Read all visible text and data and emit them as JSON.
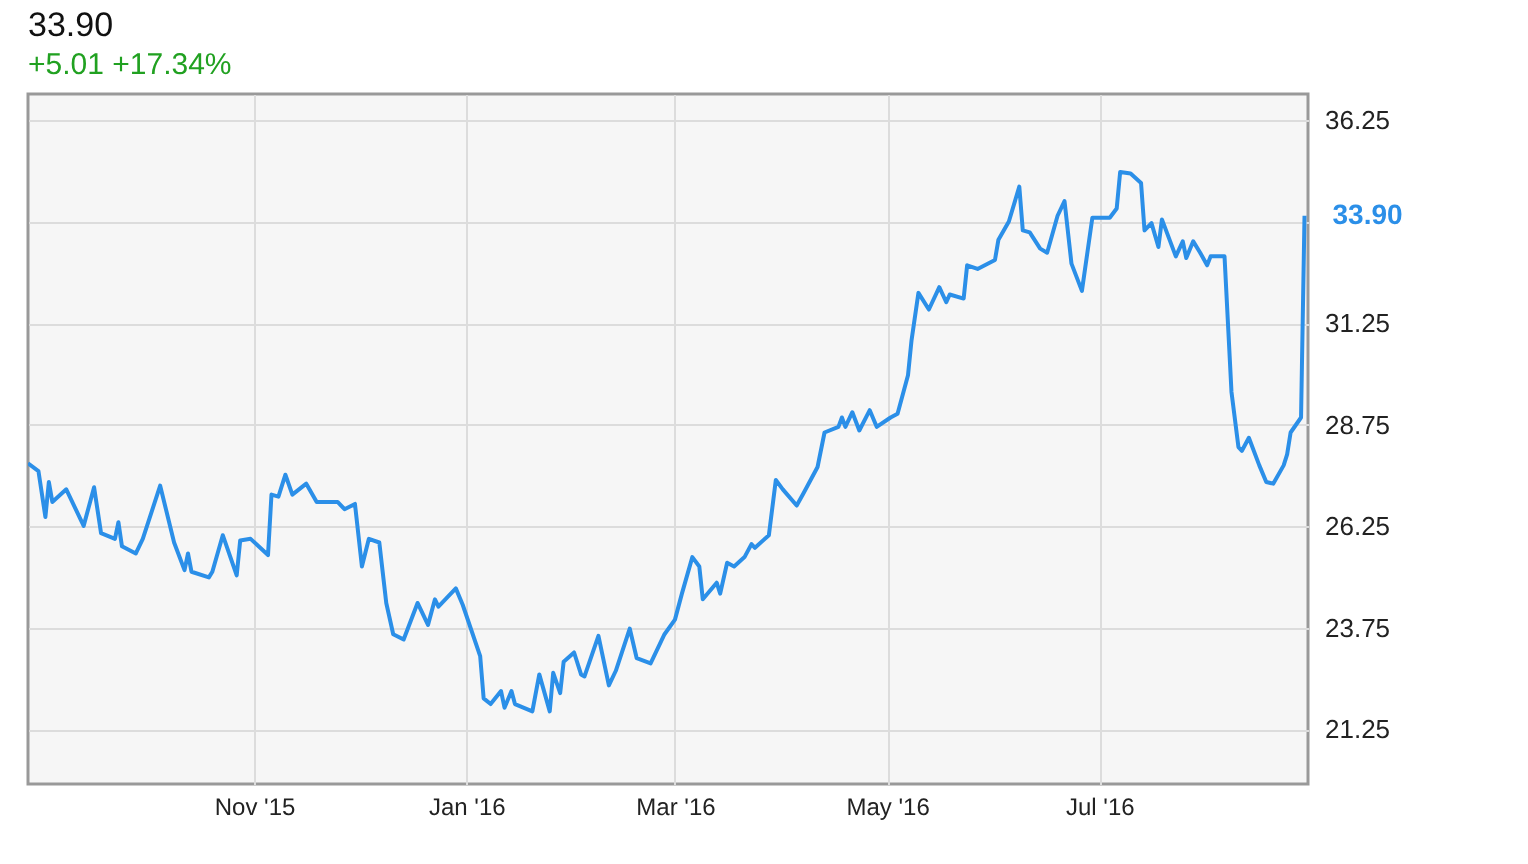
{
  "chart_data": {
    "type": "line",
    "title": "33.90",
    "subtitle": "+5.01  +17.34%",
    "x": [
      "2015-08-28",
      "2015-08-31",
      "2015-09-02",
      "2015-09-03",
      "2015-09-04",
      "2015-09-08",
      "2015-09-13",
      "2015-09-16",
      "2015-09-18",
      "2015-09-22",
      "2015-09-23",
      "2015-09-24",
      "2015-09-28",
      "2015-09-30",
      "2015-10-05",
      "2015-10-09",
      "2015-10-12",
      "2015-10-13",
      "2015-10-14",
      "2015-10-19",
      "2015-10-20",
      "2015-10-23",
      "2015-10-27",
      "2015-10-28",
      "2015-10-31",
      "2015-11-05",
      "2015-11-06",
      "2015-11-08",
      "2015-11-10",
      "2015-11-12",
      "2015-11-16",
      "2015-11-19",
      "2015-11-25",
      "2015-11-27",
      "2015-11-30",
      "2015-12-02",
      "2015-12-04",
      "2015-12-07",
      "2015-12-09",
      "2015-12-11",
      "2015-12-14",
      "2015-12-18",
      "2015-12-21",
      "2015-12-23",
      "2015-12-24",
      "2015-12-29",
      "2015-12-31",
      "2016-01-05",
      "2016-01-06",
      "2016-01-08",
      "2016-01-11",
      "2016-01-12",
      "2016-01-14",
      "2016-01-15",
      "2016-01-20",
      "2016-01-22",
      "2016-01-25",
      "2016-01-26",
      "2016-01-28",
      "2016-01-29",
      "2016-02-01",
      "2016-02-03",
      "2016-02-04",
      "2016-02-08",
      "2016-02-11",
      "2016-02-13",
      "2016-02-17",
      "2016-02-19",
      "2016-02-23",
      "2016-02-27",
      "2016-03-01",
      "2016-03-03",
      "2016-03-06",
      "2016-03-08",
      "2016-03-09",
      "2016-03-13",
      "2016-03-14",
      "2016-03-16",
      "2016-03-18",
      "2016-03-21",
      "2016-03-23",
      "2016-03-24",
      "2016-03-28",
      "2016-03-30",
      "2016-04-01",
      "2016-04-05",
      "2016-04-07",
      "2016-04-11",
      "2016-04-13",
      "2016-04-17",
      "2016-04-18",
      "2016-04-19",
      "2016-04-21",
      "2016-04-23",
      "2016-04-26",
      "2016-04-28",
      "2016-05-02",
      "2016-05-04",
      "2016-05-07",
      "2016-05-08",
      "2016-05-10",
      "2016-05-13",
      "2016-05-16",
      "2016-05-18",
      "2016-05-19",
      "2016-05-23",
      "2016-05-24",
      "2016-05-27",
      "2016-06-01",
      "2016-06-02",
      "2016-06-05",
      "2016-06-08",
      "2016-06-09",
      "2016-06-11",
      "2016-06-14",
      "2016-06-16",
      "2016-06-19",
      "2016-06-21",
      "2016-06-23",
      "2016-06-26",
      "2016-06-29",
      "2016-07-04",
      "2016-07-06",
      "2016-07-07",
      "2016-07-10",
      "2016-07-13",
      "2016-07-14",
      "2016-07-16",
      "2016-07-18",
      "2016-07-19",
      "2016-07-23",
      "2016-07-25",
      "2016-07-26",
      "2016-07-28",
      "2016-07-30",
      "2016-08-01",
      "2016-08-02",
      "2016-08-06",
      "2016-08-08",
      "2016-08-10",
      "2016-08-11",
      "2016-08-13",
      "2016-08-16",
      "2016-08-18",
      "2016-08-20",
      "2016-08-23",
      "2016-08-24",
      "2016-08-25",
      "2016-08-28",
      "2016-08-29"
    ],
    "series": [
      {
        "color": "#2b8fe8",
        "values": [
          27.8,
          27.61,
          26.48,
          27.34,
          26.85,
          27.16,
          26.26,
          27.21,
          26.08,
          25.94,
          26.35,
          25.76,
          25.58,
          25.94,
          27.25,
          25.85,
          25.17,
          25.58,
          25.13,
          24.99,
          25.13,
          26.03,
          25.04,
          25.9,
          25.94,
          25.54,
          27.03,
          26.98,
          27.52,
          27.03,
          27.3,
          26.85,
          26.85,
          26.67,
          26.8,
          25.26,
          25.94,
          25.85,
          24.36,
          23.59,
          23.46,
          24.36,
          23.82,
          24.45,
          24.27,
          24.72,
          24.31,
          23.05,
          22.01,
          21.87,
          22.19,
          21.78,
          22.19,
          21.87,
          21.69,
          22.6,
          21.69,
          22.64,
          22.14,
          22.91,
          23.14,
          22.6,
          22.55,
          23.55,
          22.33,
          22.69,
          23.73,
          23.0,
          22.87,
          23.59,
          23.95,
          24.59,
          25.49,
          25.26,
          24.45,
          24.86,
          24.59,
          25.35,
          25.26,
          25.49,
          25.81,
          25.72,
          26.03,
          27.39,
          27.16,
          26.76,
          27.07,
          27.71,
          28.56,
          28.7,
          28.93,
          28.7,
          29.06,
          28.61,
          29.11,
          28.7,
          28.93,
          29.02,
          29.97,
          30.82,
          32.0,
          31.59,
          32.14,
          31.77,
          31.96,
          31.86,
          32.68,
          32.59,
          32.81,
          33.31,
          33.76,
          34.62,
          33.54,
          33.49,
          33.09,
          32.99,
          33.9,
          34.26,
          32.72,
          32.05,
          33.85,
          33.85,
          34.08,
          34.98,
          34.94,
          34.71,
          33.54,
          33.72,
          33.13,
          33.81,
          32.9,
          33.27,
          32.86,
          33.27,
          32.99,
          32.68,
          32.9,
          32.9,
          29.56,
          28.2,
          28.11,
          28.43,
          27.75,
          27.34,
          27.3,
          27.75,
          28.02,
          28.56,
          28.93,
          33.9
        ]
      }
    ],
    "xlim": [
      "2015-08-28",
      "2016-08-30"
    ],
    "xticks": [
      {
        "value": "2015-11-01",
        "label": "Nov '15"
      },
      {
        "value": "2016-01-01",
        "label": "Jan '16"
      },
      {
        "value": "2016-03-01",
        "label": "Mar '16"
      },
      {
        "value": "2016-05-01",
        "label": "May '16"
      },
      {
        "value": "2016-07-01",
        "label": "Jul '16"
      }
    ],
    "ylim": [
      19.9,
      36.9
    ],
    "yticks": [
      21.25,
      23.75,
      26.25,
      28.75,
      31.25,
      {
        "value": 33.75,
        "label": null
      },
      36.25
    ],
    "grid": true,
    "marker": "none",
    "line_style": "solid",
    "annotations": [
      {
        "text": "33.90",
        "x": "2016-08-29",
        "y": 33.9
      }
    ]
  }
}
